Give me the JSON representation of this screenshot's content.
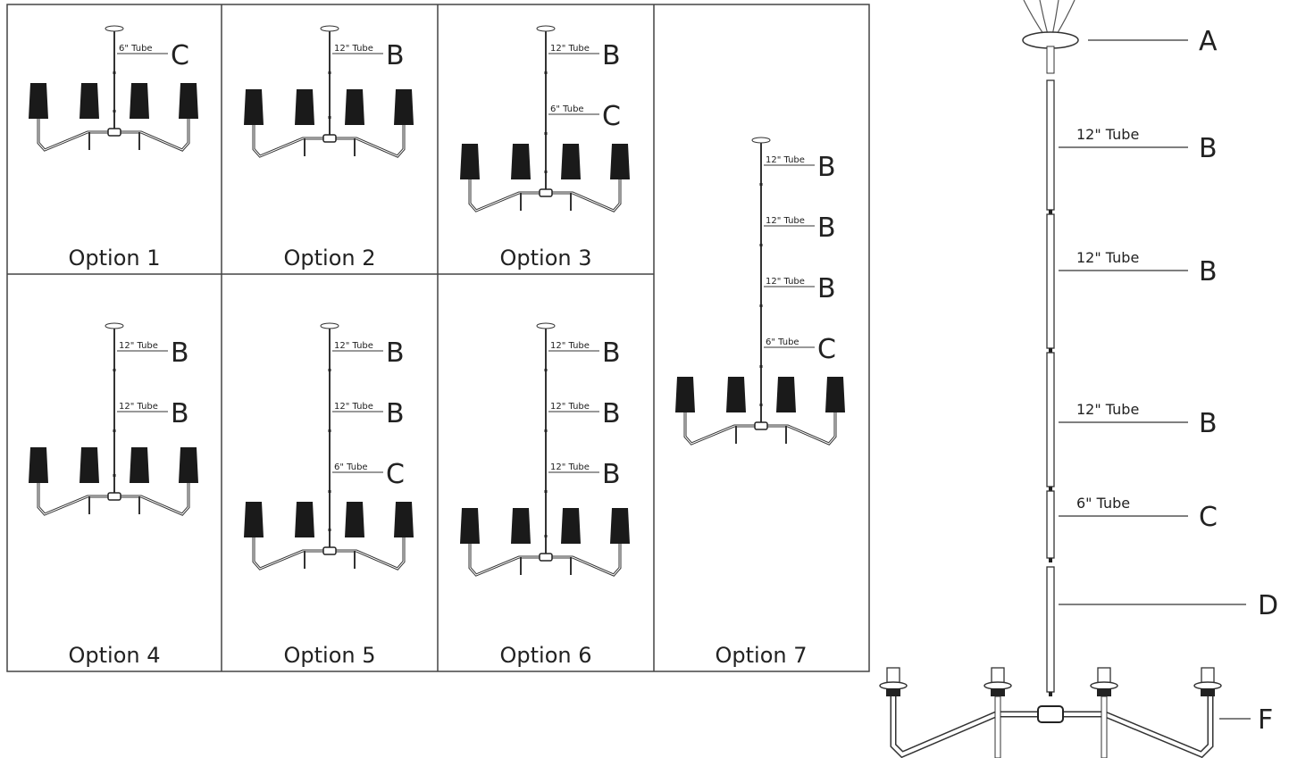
{
  "options": [
    {
      "label": "Option 1",
      "callouts": [
        {
          "tube": "6\" Tube",
          "letter": "C"
        }
      ]
    },
    {
      "label": "Option 2",
      "callouts": [
        {
          "tube": "12\" Tube",
          "letter": "B"
        }
      ]
    },
    {
      "label": "Option 3",
      "callouts": [
        {
          "tube": "12\" Tube",
          "letter": "B"
        },
        {
          "tube": "6\" Tube",
          "letter": "C"
        }
      ]
    },
    {
      "label": "Option 4",
      "callouts": [
        {
          "tube": "12\" Tube",
          "letter": "B"
        },
        {
          "tube": "12\" Tube",
          "letter": "B"
        }
      ]
    },
    {
      "label": "Option 5",
      "callouts": [
        {
          "tube": "12\" Tube",
          "letter": "B"
        },
        {
          "tube": "12\" Tube",
          "letter": "B"
        },
        {
          "tube": "6\" Tube",
          "letter": "C"
        }
      ]
    },
    {
      "label": "Option 6",
      "callouts": [
        {
          "tube": "12\" Tube",
          "letter": "B"
        },
        {
          "tube": "12\" Tube",
          "letter": "B"
        },
        {
          "tube": "12\" Tube",
          "letter": "B"
        }
      ]
    },
    {
      "label": "Option 7",
      "callouts": [
        {
          "tube": "12\" Tube",
          "letter": "B"
        },
        {
          "tube": "12\" Tube",
          "letter": "B"
        },
        {
          "tube": "12\" Tube",
          "letter": "B"
        },
        {
          "tube": "6\" Tube",
          "letter": "C"
        }
      ]
    }
  ],
  "assembly": {
    "parts": [
      {
        "letter": "A"
      },
      {
        "tube": "12\" Tube",
        "letter": "B"
      },
      {
        "tube": "12\" Tube",
        "letter": "B"
      },
      {
        "tube": "12\" Tube",
        "letter": "B"
      },
      {
        "tube": "6\" Tube",
        "letter": "C"
      },
      {
        "letter": "D"
      },
      {
        "letter": "F"
      }
    ]
  }
}
